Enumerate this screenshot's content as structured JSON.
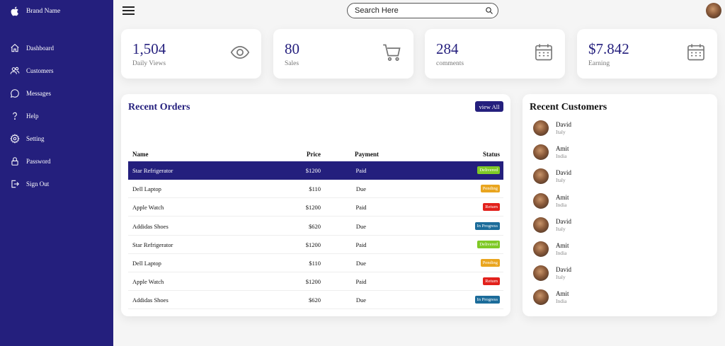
{
  "sidebar": {
    "brand": {
      "label": "Brand Name",
      "icon": "apple-icon"
    },
    "items": [
      {
        "label": "Dashboard",
        "icon": "home-icon"
      },
      {
        "label": "Customers",
        "icon": "people-icon"
      },
      {
        "label": "Messages",
        "icon": "chat-icon"
      },
      {
        "label": "Help",
        "icon": "question-icon"
      },
      {
        "label": "Setting",
        "icon": "gear-icon"
      },
      {
        "label": "Password",
        "icon": "lock-icon"
      },
      {
        "label": "Sign Out",
        "icon": "sign-out-icon"
      }
    ]
  },
  "topbar": {
    "search_placeholder": "Search Here"
  },
  "stats": [
    {
      "value": "1,504",
      "label": "Daily Views",
      "icon": "eye-icon"
    },
    {
      "value": "80",
      "label": "Sales",
      "icon": "cart-icon"
    },
    {
      "value": "284",
      "label": "comments",
      "icon": "calendar-icon"
    },
    {
      "value": "$7.842",
      "label": "Earning",
      "icon": "calendar-icon"
    }
  ],
  "orders": {
    "title": "Recent Orders",
    "view_all": "view All",
    "headers": {
      "name": "Name",
      "price": "Price",
      "payment": "Payment",
      "status": "Status"
    },
    "rows": [
      {
        "name": "Star Refrigerator",
        "price": "$1200",
        "payment": "Paid",
        "status": "Delivered"
      },
      {
        "name": "Dell Laptop",
        "price": "$110",
        "payment": "Due",
        "status": "Pending"
      },
      {
        "name": "Apple Watch",
        "price": "$1200",
        "payment": "Paid",
        "status": "Return"
      },
      {
        "name": "Addidas Shoes",
        "price": "$620",
        "payment": "Due",
        "status": "In Progress"
      },
      {
        "name": "Star Refrigerator",
        "price": "$1200",
        "payment": "Paid",
        "status": "Delivered"
      },
      {
        "name": "Dell Laptop",
        "price": "$110",
        "payment": "Due",
        "status": "Pending"
      },
      {
        "name": "Apple Watch",
        "price": "$1200",
        "payment": "Paid",
        "status": "Return"
      },
      {
        "name": "Addidas Shoes",
        "price": "$620",
        "payment": "Due",
        "status": "In Progress"
      }
    ]
  },
  "status_colors": {
    "Delivered": "#7fc926",
    "Pending": "#e9a51f",
    "Return": "#e2211c",
    "In Progress": "#1c6c9a"
  },
  "customers": {
    "title": "Recent Customers",
    "items": [
      {
        "name": "David",
        "location": "Italy"
      },
      {
        "name": "Amit",
        "location": "India"
      },
      {
        "name": "David",
        "location": "Italy"
      },
      {
        "name": "Amit",
        "location": "India"
      },
      {
        "name": "David",
        "location": "Italy"
      },
      {
        "name": "Amit",
        "location": "India"
      },
      {
        "name": "David",
        "location": "Italy"
      },
      {
        "name": "Amit",
        "location": "India"
      }
    ]
  },
  "colors": {
    "primary": "#241f7d"
  }
}
